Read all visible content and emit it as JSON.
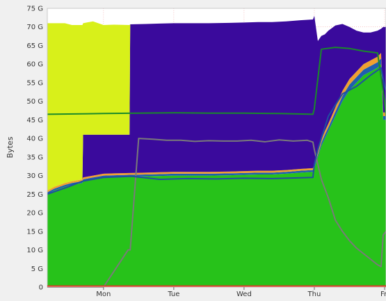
{
  "chart_data": {
    "type": "area",
    "ylabel": "Bytes",
    "y_unit": "G",
    "ylim": [
      0,
      75
    ],
    "y_ticks": [
      {
        "value": 0,
        "label": "0"
      },
      {
        "value": 5,
        "label": "5 G"
      },
      {
        "value": 10,
        "label": "10 G"
      },
      {
        "value": 15,
        "label": "15 G"
      },
      {
        "value": 20,
        "label": "20 G"
      },
      {
        "value": 25,
        "label": "25 G"
      },
      {
        "value": 30,
        "label": "30 G"
      },
      {
        "value": 35,
        "label": "35 G"
      },
      {
        "value": 40,
        "label": "40 G"
      },
      {
        "value": 45,
        "label": "45 G"
      },
      {
        "value": 50,
        "label": "50 G"
      },
      {
        "value": 55,
        "label": "55 G"
      },
      {
        "value": 60,
        "label": "60 G"
      },
      {
        "value": 65,
        "label": "65 G"
      },
      {
        "value": 70,
        "label": "70 G"
      },
      {
        "value": 75,
        "label": "75 G"
      }
    ],
    "x_unit": "days",
    "xlim": [
      -0.8,
      4.02
    ],
    "x_ticks": [
      {
        "value": 0,
        "label": "Mon"
      },
      {
        "value": 1,
        "label": "Tue"
      },
      {
        "value": 2,
        "label": "Wed"
      },
      {
        "value": 3,
        "label": "Thu"
      },
      {
        "value": 4,
        "label": "Fri"
      }
    ],
    "grid": true,
    "x": [
      -0.8,
      -0.7,
      -0.55,
      -0.45,
      -0.3,
      -0.29,
      -0.15,
      0,
      0.15,
      0.37,
      0.38,
      0.6,
      0.8,
      1,
      1.2,
      1.5,
      1.8,
      2,
      2.2,
      2.4,
      2.6,
      2.8,
      2.98,
      3.0,
      3.05,
      3.1,
      3.15,
      3.2,
      3.3,
      3.4,
      3.5,
      3.6,
      3.7,
      3.8,
      3.9,
      3.95,
      3.98,
      4.02
    ],
    "series": [
      {
        "color": "#27c21a",
        "values": [
          25,
          26,
          27,
          27.5,
          28,
          28.5,
          29,
          29.5,
          29.6,
          29.7,
          29.7,
          29.8,
          29.9,
          30,
          30,
          30,
          30.1,
          30.2,
          30.3,
          30.3,
          30.5,
          30.8,
          31,
          32,
          35,
          38,
          40,
          42,
          46,
          50,
          53,
          55,
          57,
          58,
          59,
          60,
          45,
          45
        ]
      },
      {
        "color": "#1f5fb0",
        "values": [
          0.5,
          0.5,
          0.5,
          0.5,
          0.5,
          0.5,
          0.5,
          0.5,
          0.5,
          0.5,
          0.5,
          0.5,
          0.5,
          0.5,
          0.5,
          0.5,
          0.5,
          0.5,
          0.5,
          0.5,
          0.5,
          0.5,
          0.5,
          0.5,
          0.6,
          0.8,
          1,
          1,
          1.2,
          1.4,
          1.5,
          1.5,
          1.5,
          1.5,
          1.5,
          1.5,
          1,
          1
        ]
      },
      {
        "color": "#f0a030",
        "values": [
          0.5,
          0.5,
          0.5,
          0.5,
          0.5,
          0.5,
          0.5,
          0.5,
          0.5,
          0.5,
          0.5,
          0.5,
          0.5,
          0.5,
          0.5,
          0.5,
          0.5,
          0.5,
          0.5,
          0.5,
          0.5,
          0.5,
          0.5,
          0.5,
          0.6,
          0.8,
          1,
          1,
          1.2,
          1.4,
          1.5,
          1.5,
          1.5,
          1.5,
          1.5,
          1.5,
          1,
          1
        ]
      },
      {
        "color": "#3a0a9c",
        "values": [
          0,
          0,
          0,
          0,
          0,
          11.5,
          11,
          10.5,
          10.4,
          10.3,
          40,
          40,
          40,
          40,
          40,
          40,
          40,
          40,
          40,
          40,
          40,
          40,
          40,
          40,
          30,
          28,
          26,
          25,
          22,
          18,
          14,
          11,
          8.5,
          7.5,
          7,
          6.5,
          23,
          23
        ]
      },
      {
        "color": "#d8f01a",
        "values": [
          45,
          44,
          43,
          42,
          41.5,
          30,
          30.5,
          29.5,
          29.6,
          29.5,
          0,
          0,
          0,
          0,
          0,
          0,
          0,
          0,
          0,
          0,
          0,
          0,
          0,
          0,
          0,
          0,
          0,
          0,
          0,
          0,
          0,
          0,
          0,
          0,
          0,
          0,
          0,
          0
        ]
      }
    ],
    "lines": [
      {
        "color": "#1a8a2a",
        "x": [
          -0.8,
          0,
          0.5,
          1,
          1.5,
          2,
          2.5,
          2.98,
          3.0,
          3.05,
          3.1,
          3.3,
          3.5,
          3.7,
          3.9,
          4.0,
          4.02
        ],
        "values": [
          46.5,
          46.7,
          46.8,
          46.9,
          46.8,
          46.8,
          46.7,
          46.5,
          48,
          56,
          64,
          64.5,
          64.2,
          63.5,
          63,
          50,
          46
        ]
      },
      {
        "color": "#7a7a7a",
        "x": [
          -0.8,
          -0.6,
          -0.4,
          -0.3,
          0,
          0.35,
          0.38,
          0.5,
          0.7,
          0.9,
          1.1,
          1.3,
          1.5,
          1.7,
          1.9,
          2.1,
          2.3,
          2.5,
          2.7,
          2.9,
          2.98,
          3.0,
          3.05,
          3.1,
          3.2,
          3.3,
          3.4,
          3.5,
          3.6,
          3.7,
          3.8,
          3.9,
          3.95,
          3.98,
          4.02
        ],
        "values": [
          0,
          0,
          0,
          0,
          0,
          10,
          10,
          40,
          39.8,
          39.5,
          39.5,
          39.2,
          39.4,
          39.3,
          39.3,
          39.5,
          39.1,
          39.6,
          39.3,
          39.5,
          39,
          37,
          33,
          29,
          24,
          18,
          15,
          12.5,
          10.5,
          9,
          7.5,
          6,
          5.5,
          14,
          15
        ]
      },
      {
        "color": "#1f4fa0",
        "x": [
          -0.8,
          -0.5,
          -0.3,
          0,
          0.4,
          0.8,
          1.2,
          1.6,
          2.0,
          2.4,
          2.8,
          2.98,
          3.0,
          3.05,
          3.1,
          3.2,
          3.4,
          3.6,
          3.8,
          3.95,
          4.0,
          4.02
        ],
        "values": [
          25,
          27,
          28.5,
          29.5,
          29.8,
          29,
          29.2,
          29.1,
          29.3,
          29.2,
          29.4,
          29.5,
          33,
          37,
          40,
          46,
          52,
          54,
          57,
          59,
          54,
          53
        ]
      }
    ]
  }
}
